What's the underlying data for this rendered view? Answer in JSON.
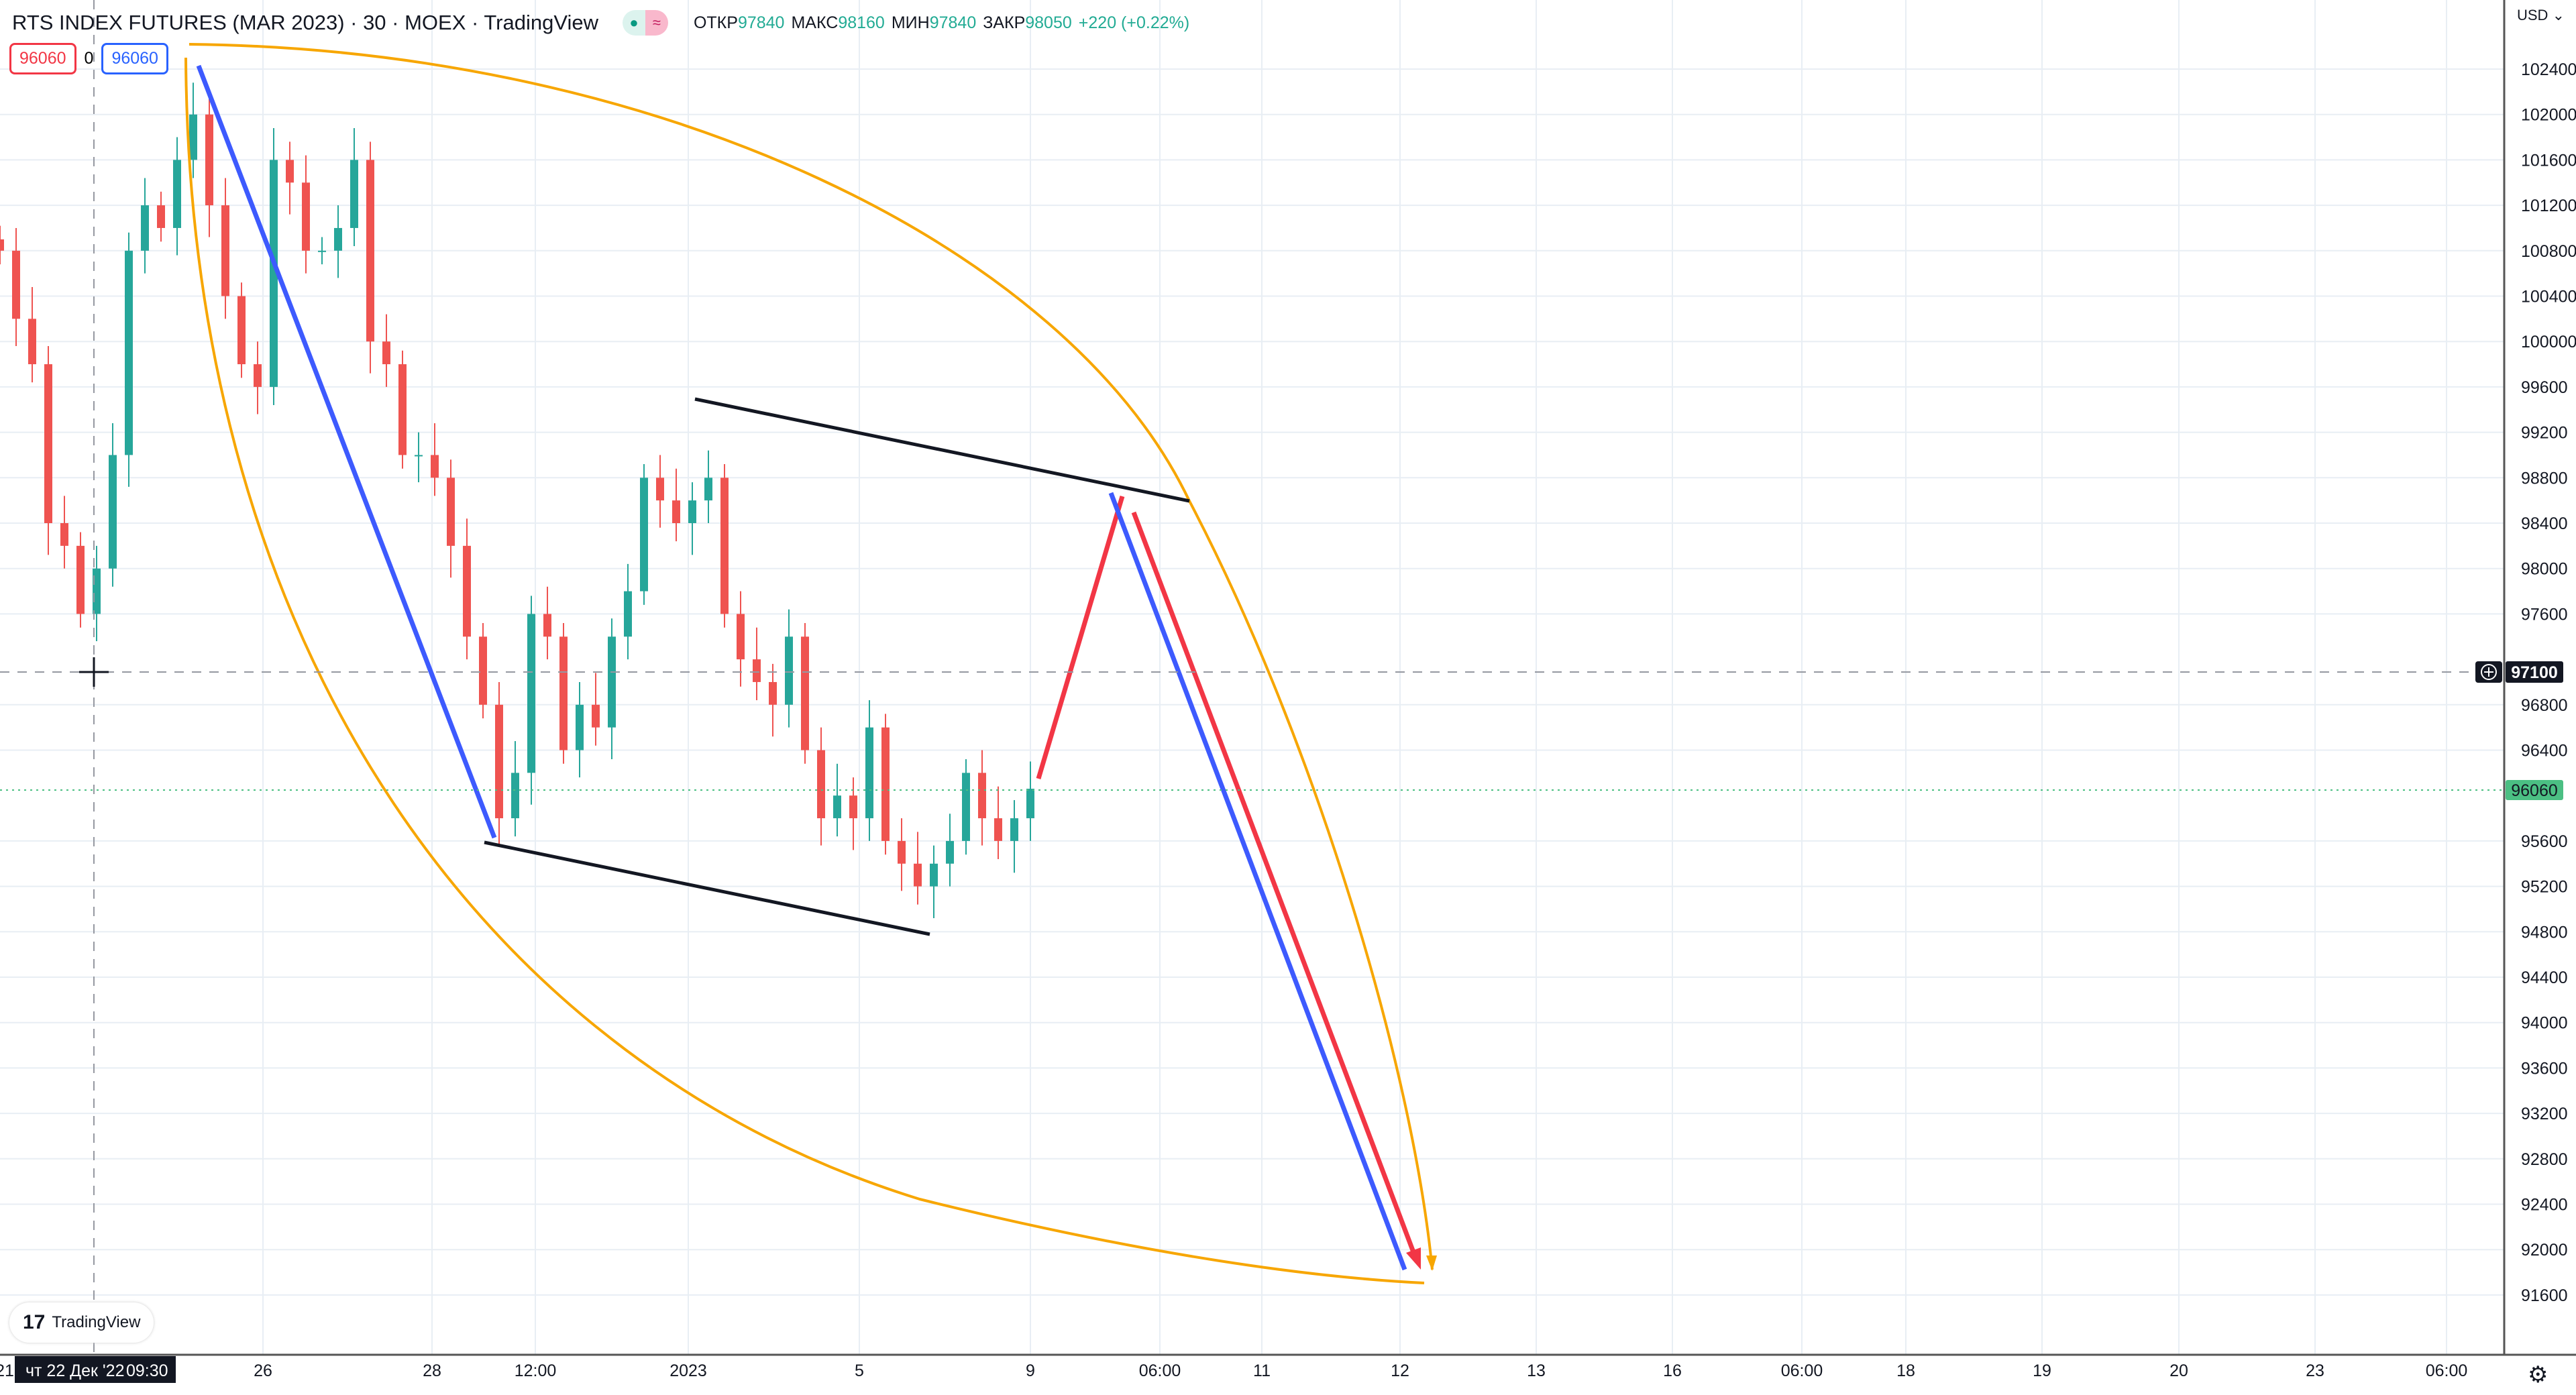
{
  "header": {
    "title": "RTS INDEX FUTURES (MAR 2023) · 30 · MOEX · TradingView",
    "open_label": "ОТКР",
    "open": "97840",
    "high_label": "МАКС",
    "high": "98160",
    "low_label": "МИН",
    "low": "97840",
    "close_label": "ЗАКР",
    "close": "98050",
    "change": "+220 (+0.22%)",
    "market_icon": "market-open-dot-icon",
    "delay_icon": "wave-icon"
  },
  "trade_badges": {
    "sell": "96060",
    "spread": "0",
    "buy": "96060"
  },
  "currency": "USD",
  "crosshair": {
    "price": "97100",
    "date": "чт 22 Дек '22",
    "time": "09:30"
  },
  "last_price": "96060",
  "logo_text": "TradingView",
  "colors": {
    "up": "#26a69a",
    "down": "#ef5350",
    "accent": "#2962ff",
    "drawing_orange": "#f7a600",
    "drawing_blue": "#3d5afe",
    "drawing_red": "#f23645",
    "drawing_black": "#131722",
    "last_price": "#4bbf83"
  },
  "chart_data": {
    "type": "candlestick",
    "timeframe": "30",
    "price_ticks": [
      102400,
      102000,
      101600,
      101200,
      100800,
      100400,
      100000,
      99600,
      99200,
      98800,
      98400,
      98000,
      97600,
      96800,
      96400,
      95600,
      95200,
      94800,
      94400,
      94000,
      93600,
      93200,
      92800,
      92400,
      92000,
      91600
    ],
    "time_ticks": [
      "21",
      "26",
      "28",
      "12:00",
      "2023",
      "5",
      "9",
      "06:00",
      "11",
      "12",
      "13",
      "16",
      "06:00",
      "18",
      "19",
      "20",
      "23",
      "06:00"
    ],
    "closes": [
      100800,
      100200,
      99800,
      98400,
      98200,
      97600,
      98000,
      99000,
      100800,
      101200,
      101000,
      101600,
      102000,
      101200,
      100400,
      99800,
      99600,
      101600,
      101400,
      100800,
      100800,
      101000,
      101600,
      100000,
      99800,
      99000,
      99000,
      98800,
      98200,
      97400,
      96800,
      95800,
      96200,
      97600,
      97400,
      96400,
      96800,
      96600,
      97400,
      97800,
      98800,
      98600,
      98400,
      98600,
      98800,
      97600,
      97200,
      97000,
      96800,
      97400,
      96400,
      95800,
      96000,
      95800,
      96600,
      95600,
      95400,
      95200,
      95400,
      95600,
      96200,
      95800,
      95600,
      95800,
      96060
    ]
  }
}
